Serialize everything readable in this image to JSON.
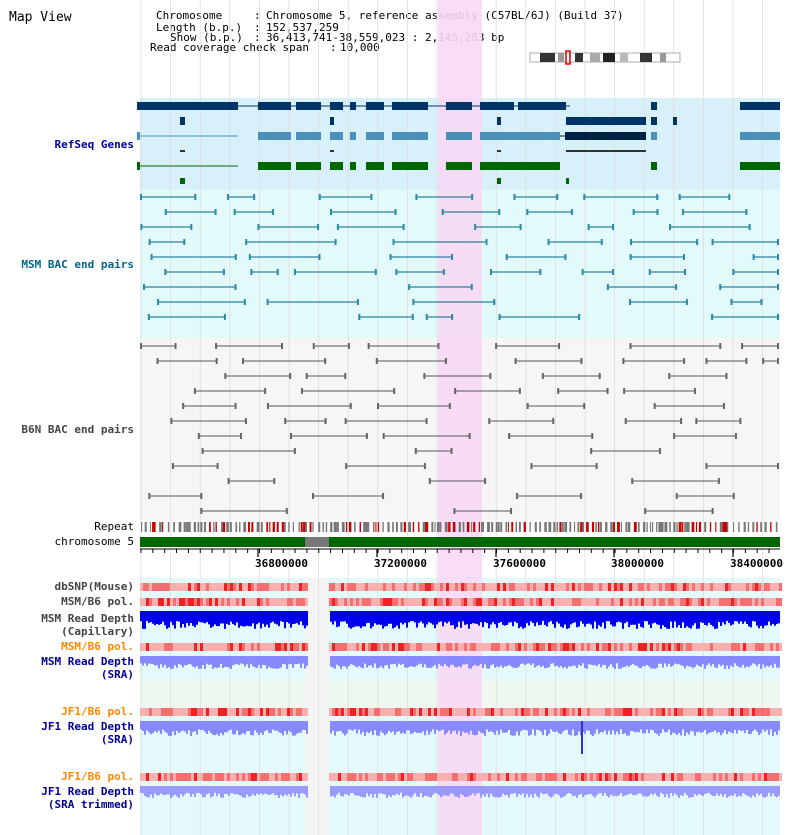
{
  "app_title": "Map View",
  "header": {
    "chromosome_key": "Chromosome",
    "chromosome_val": "Chromosome 5, reference assembly (C57BL/6J) (Build 37)",
    "length_key": "Length (b.p.)",
    "length_val": "152,537,259",
    "show_key": "Show (b.p.)",
    "show_val": "36,413,741-38,559,023 : 2,145,283 bp",
    "coverage_key": "Read coverage check span",
    "coverage_val": "10,000"
  },
  "tracks": {
    "refseq": "RefSeq Genes",
    "msm_bac": "MSM BAC end pairs",
    "b6n_bac": "B6N BAC end pairs",
    "repeat": "Repeat",
    "chromosome": "chromosome 5",
    "dbsnp": "dbSNP(Mouse)",
    "msm_b6_pol_1": "MSM/B6 pol.",
    "msm_depth_cap_1": "MSM Read Depth",
    "msm_depth_cap_2": "(Capillary)",
    "msm_b6_pol_2": "MSM/B6 pol.",
    "msm_depth_sra_1": "MSM Read Depth",
    "msm_depth_sra_2": "(SRA)",
    "jf1_b6_pol_1": "JF1/B6 pol.",
    "jf1_depth_sra_1": "JF1 Read Depth",
    "jf1_depth_sra_2": "(SRA)",
    "jf1_b6_pol_2": "JF1/B6 pol.",
    "jf1_depth_trim_1": "JF1 Read Depth",
    "jf1_depth_trim_2": "(SRA trimmed)"
  },
  "axis_ticks": [
    "36800000",
    "37200000",
    "37600000",
    "38000000",
    "38400000"
  ],
  "colors": {
    "highlight": "#f8d8f4",
    "refseq_bg": "#d8f0fa",
    "msm_bg": "#e2fafa",
    "gene_dark": "#003366",
    "gene_mid": "#4a90b8",
    "gene_green": "#006600",
    "chromosome_bar": "#006600",
    "depth_blue": "#0000ee",
    "depth_light": "#8888ff"
  }
}
